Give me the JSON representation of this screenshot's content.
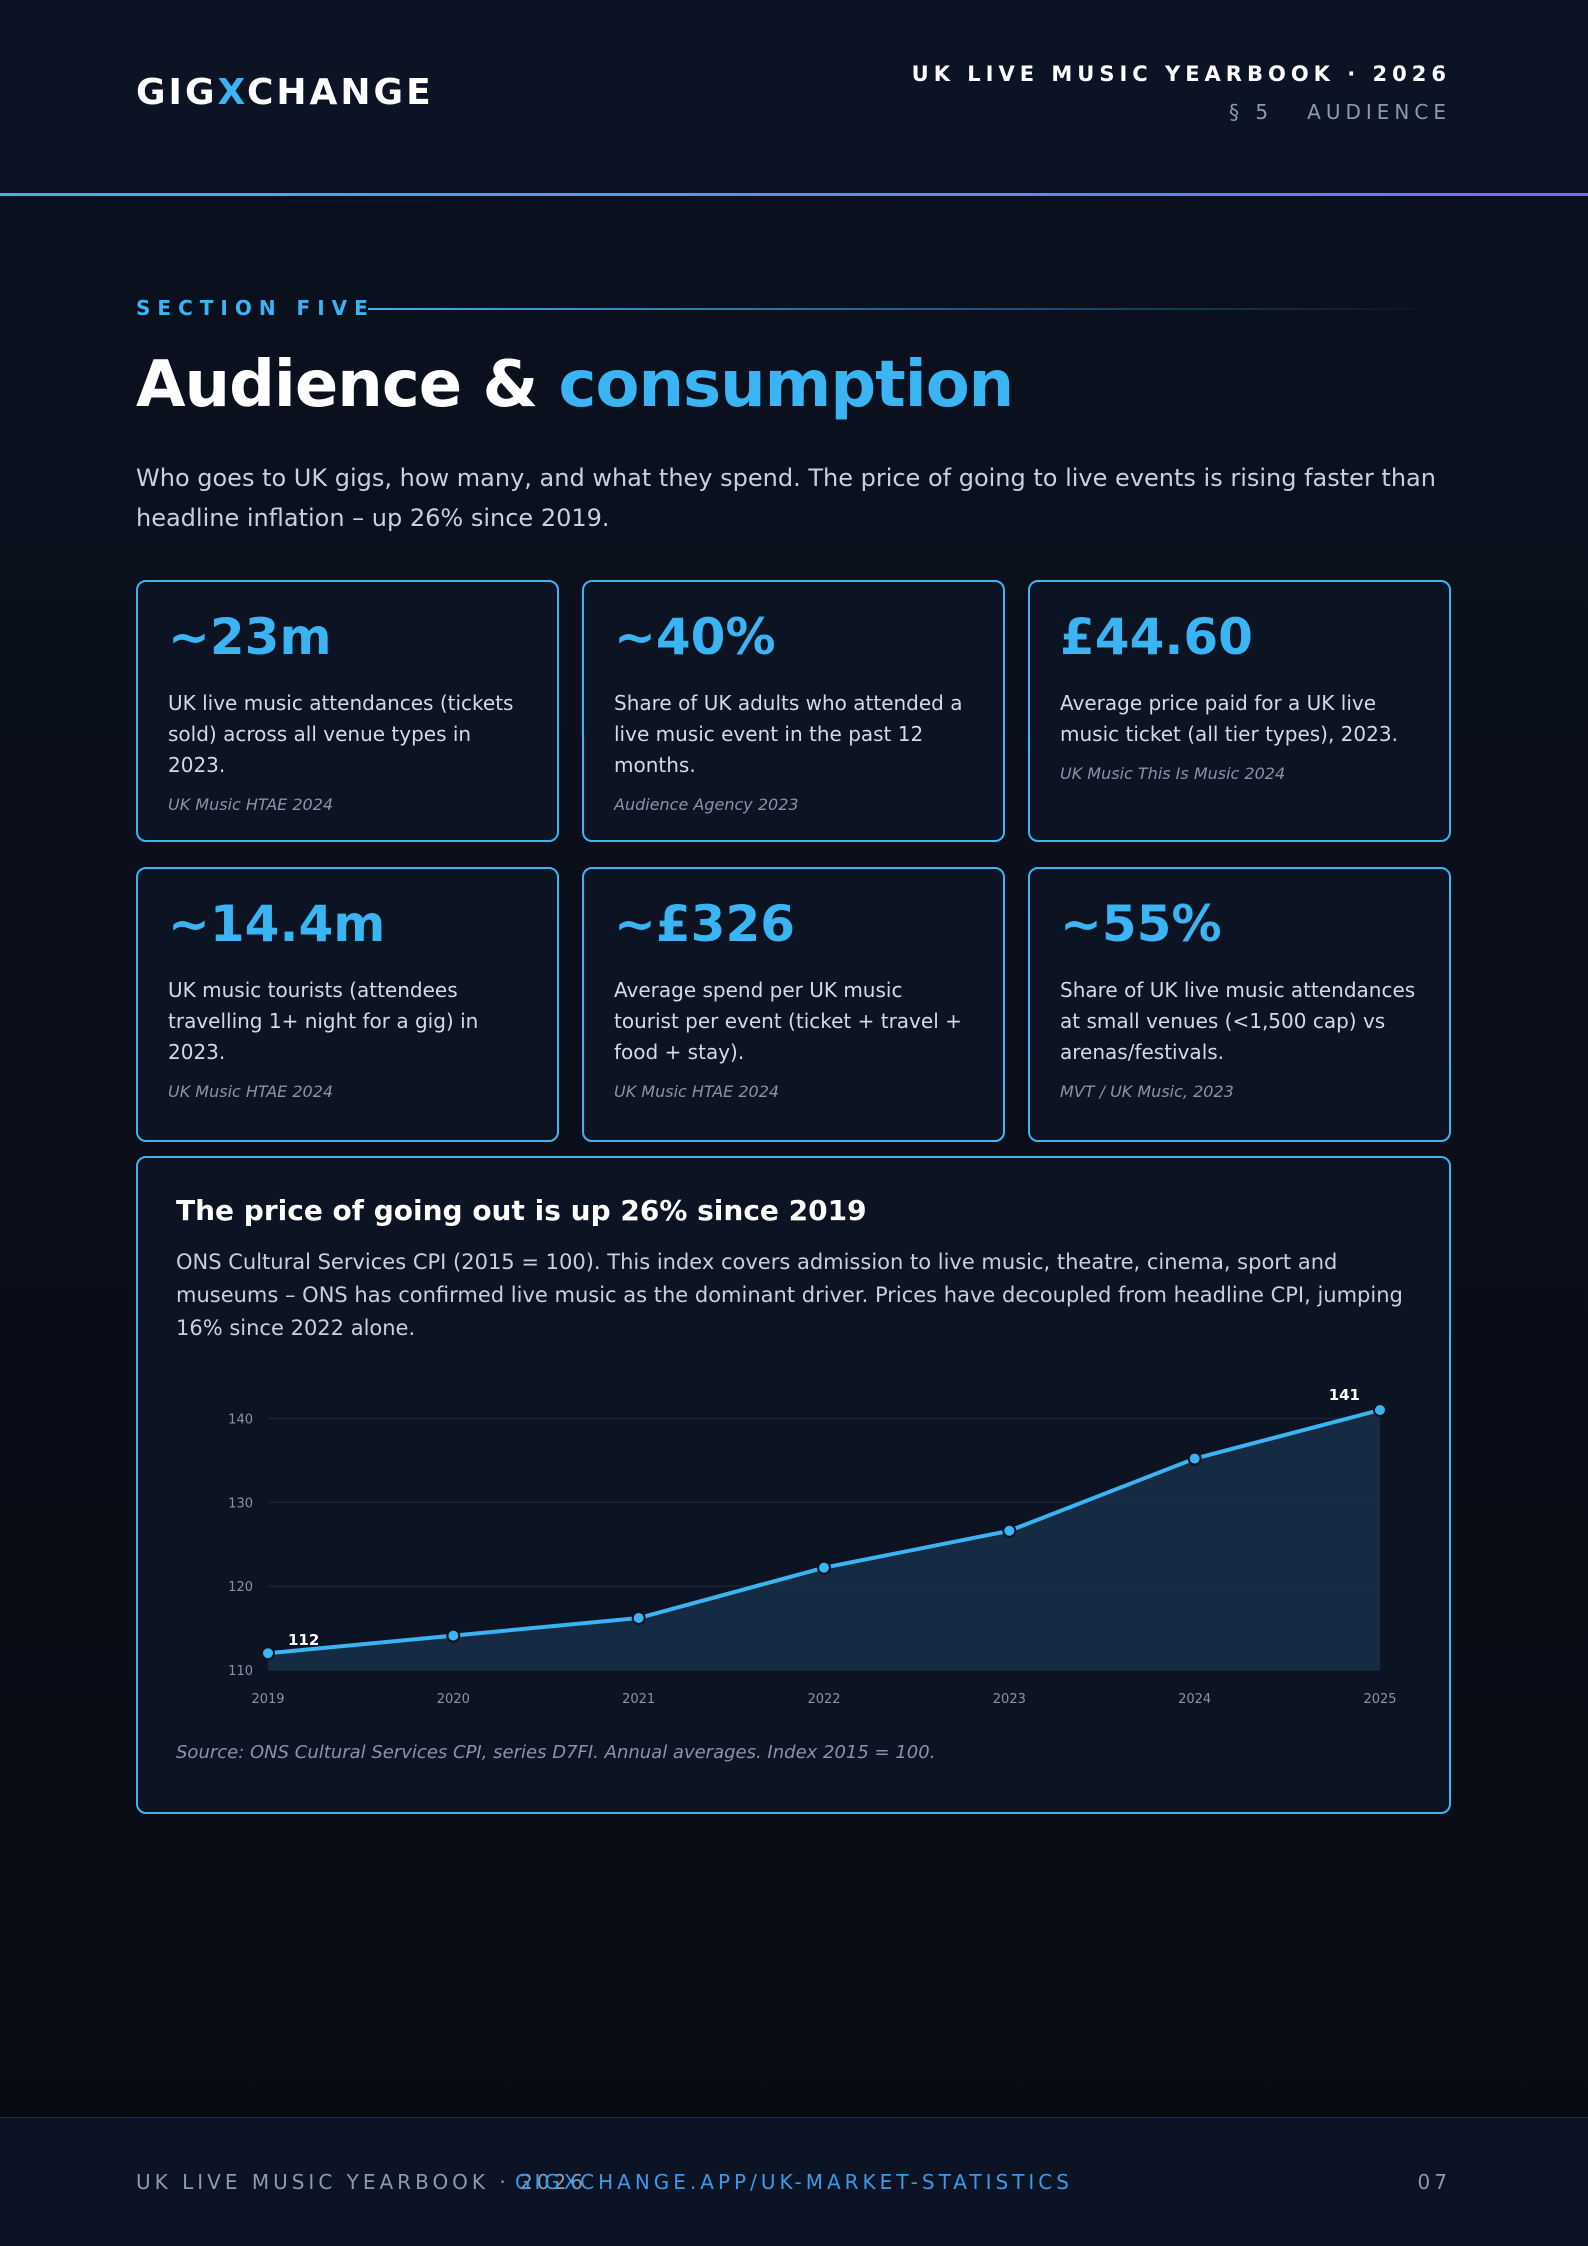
{
  "header": {
    "logo": [
      "GIG",
      "X",
      "CHANGE"
    ],
    "publication": "UK LIVE MUSIC YEARBOOK · 2026",
    "section_ref": "§ 5   AUDIENCE"
  },
  "section": {
    "label": "SECTION FIVE",
    "title": [
      "Audience &",
      "consumption"
    ],
    "intro": "Who goes to UK gigs, how many, and what they spend. The price of going to live events is rising faster than headline inflation – up 26% since 2019."
  },
  "stats": [
    {
      "value": "~23m",
      "text": "UK live music attendances (tickets sold) across all venue types in 2023.",
      "source": "UK Music HTAE 2024"
    },
    {
      "value": "~40%",
      "text": "Share of UK adults who attended a live music event in the past 12 months.",
      "source": "Audience Agency 2023"
    },
    {
      "value": "£44.60",
      "text": "Average price paid for a UK live music ticket (all tier types), 2023.",
      "source": "UK Music This Is Music 2024"
    },
    {
      "value": "~14.4m",
      "text": "UK music tourists (attendees travelling 1+ night for a gig) in 2023.",
      "source": "UK Music HTAE 2024"
    },
    {
      "value": "~£326",
      "text": "Average spend per UK music tourist per event (ticket + travel + food + stay).",
      "source": "UK Music HTAE 2024"
    },
    {
      "value": "~55%",
      "text": "Share of UK live music attendances at small venues (<1,500 cap) vs arenas/festivals.",
      "source": "MVT / UK Music, 2023"
    }
  ],
  "chart_data": {
    "type": "line",
    "title": "The price of going out is up 26% since 2019",
    "subtitle": "ONS Cultural Services CPI (2015 = 100). This index covers admission to live music, theatre, cinema, sport and museums – ONS has confirmed live music as the dominant driver. Prices have decoupled from headline CPI, jumping 16% since 2022 alone.",
    "categories": [
      "2019",
      "2020",
      "2021",
      "2022",
      "2023",
      "2024",
      "2025"
    ],
    "values": [
      112,
      114.1,
      116.2,
      122.2,
      126.6,
      135.2,
      141
    ],
    "color": "#3ab4f2",
    "area_color": "#17304a",
    "ylim": [
      110,
      141
    ],
    "yticks": [
      110,
      120,
      130,
      140
    ],
    "grid": true,
    "source": "Source: ONS Cultural Services CPI, series D7FI. Annual averages. Index 2015 = 100."
  },
  "footer": {
    "left": "UK LIVE MUSIC YEARBOOK · 2026",
    "center": "GIGXCHANGE.APP/UK-MARKET-STATISTICS",
    "page": "07"
  }
}
